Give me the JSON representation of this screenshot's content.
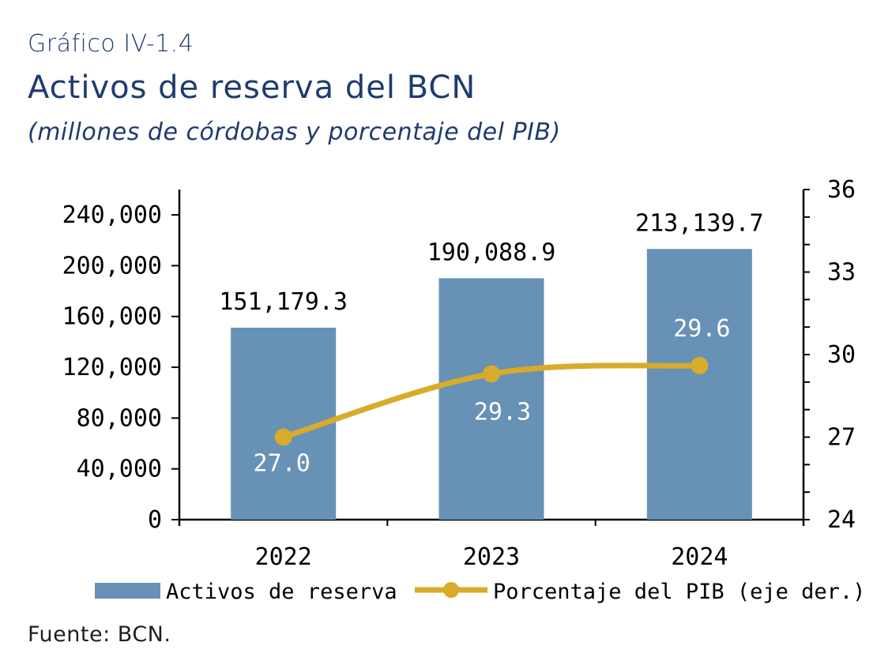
{
  "header": {
    "kicker": "Gráfico IV-1.4",
    "title": "Activos de reserva del BCN",
    "subtitle": "(millones de córdobas y porcentaje del PIB)"
  },
  "footer": {
    "source": "Fuente: BCN."
  },
  "colors": {
    "bar": "#6791b5",
    "line": "#d8ab2b",
    "title": "#1f3b6f",
    "axis": "#000000",
    "label_on_bar": "#ffffff"
  },
  "chart_data": {
    "type": "bar",
    "categories": [
      "2022",
      "2023",
      "2024"
    ],
    "y_left": {
      "ylim": [
        0,
        250000
      ],
      "ticks": [
        0,
        40000,
        80000,
        120000,
        160000,
        200000,
        240000
      ],
      "tick_labels": [
        "0",
        "40,000",
        "80,000",
        "120,000",
        "160,000",
        "200,000",
        "240,000"
      ]
    },
    "y_right": {
      "ylim": [
        24,
        36
      ],
      "ticks": [
        24,
        27,
        30,
        33,
        36
      ],
      "tick_labels": [
        "24",
        "27",
        "30",
        "33",
        "36"
      ]
    },
    "series": [
      {
        "name": "Activos de reserva",
        "type": "bar",
        "axis": "left",
        "values": [
          151179.3,
          190088.9,
          213139.7
        ],
        "labels": [
          "151,179.3",
          "190,088.9",
          "213,139.7"
        ]
      },
      {
        "name": "Porcentaje del PIB (eje der.)",
        "type": "line",
        "axis": "right",
        "values": [
          27.0,
          29.3,
          29.6
        ],
        "labels": [
          "27.0",
          "29.3",
          "29.6"
        ]
      }
    ],
    "legend_position": "bottom",
    "grid": false
  }
}
